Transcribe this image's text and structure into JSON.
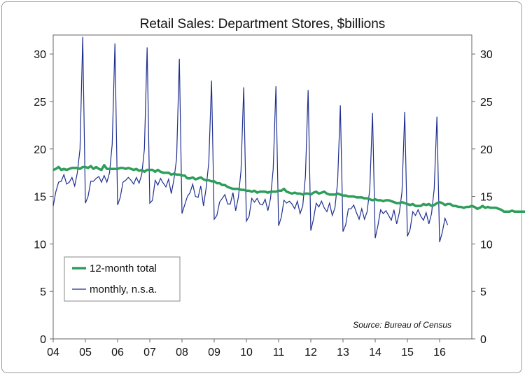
{
  "chart_data": {
    "type": "line",
    "title": "Retail Sales: Department Stores, $billions",
    "source": "Source: Bureau of Census",
    "xlabel": "",
    "ylabel": "",
    "ylim": [
      0,
      32
    ],
    "yticks": [
      "0",
      "5",
      "10",
      "15",
      "20",
      "25",
      "30"
    ],
    "xticks": [
      "04",
      "05",
      "06",
      "07",
      "08",
      "09",
      "10",
      "11",
      "12",
      "13",
      "14",
      "15",
      "16"
    ],
    "xlim": [
      2004,
      2017
    ],
    "grid": false,
    "legend_position": "bottom-left",
    "colors": {
      "total": "#2e9e5b",
      "monthly": "#1f2f8f"
    },
    "series": [
      {
        "name": "12-month total",
        "x_start": "2004-01",
        "values": [
          17.8,
          17.9,
          18.1,
          17.8,
          17.9,
          17.8,
          17.9,
          18.0,
          18.0,
          18.0,
          17.9,
          18.1,
          18.1,
          18.0,
          18.2,
          17.9,
          18.1,
          17.9,
          17.8,
          18.3,
          17.9,
          17.9,
          17.9,
          17.9,
          17.9,
          18.0,
          18.0,
          17.9,
          18.0,
          17.9,
          17.8,
          17.9,
          17.7,
          17.8,
          17.6,
          17.8,
          17.8,
          17.8,
          17.6,
          17.8,
          17.6,
          17.5,
          17.5,
          17.5,
          17.3,
          17.4,
          17.3,
          17.3,
          17.2,
          17.2,
          16.9,
          16.9,
          17.0,
          16.8,
          16.9,
          17.0,
          16.8,
          16.7,
          16.7,
          16.6,
          16.6,
          16.4,
          16.4,
          16.2,
          16.2,
          16.0,
          15.9,
          15.8,
          15.8,
          15.8,
          15.7,
          15.7,
          15.6,
          15.6,
          15.5,
          15.6,
          15.4,
          15.5,
          15.5,
          15.5,
          15.4,
          15.5,
          15.5,
          15.5,
          15.6,
          15.6,
          15.8,
          15.5,
          15.4,
          15.3,
          15.4,
          15.3,
          15.3,
          15.2,
          15.3,
          15.3,
          15.2,
          15.4,
          15.5,
          15.3,
          15.4,
          15.5,
          15.3,
          15.2,
          15.2,
          15.2,
          15.3,
          15.2,
          15.1,
          15.1,
          15.0,
          15.0,
          15.0,
          14.9,
          14.9,
          14.9,
          14.8,
          14.8,
          14.7,
          14.6,
          14.7,
          14.6,
          14.6,
          14.5,
          14.6,
          14.6,
          14.5,
          14.4,
          14.3,
          14.3,
          14.4,
          14.3,
          14.2,
          14.1,
          14.2,
          14.0,
          14.0,
          14.0,
          14.2,
          14.1,
          14.2,
          14.0,
          14.1,
          14.3,
          14.4,
          14.3,
          14.1,
          14.2,
          14.2,
          14.0,
          14.0,
          13.9,
          13.9,
          13.8,
          13.9,
          13.9,
          14.0,
          13.9,
          13.7,
          13.8,
          14.0,
          13.8,
          13.9,
          13.8,
          13.8,
          13.8,
          13.7,
          13.6,
          13.4,
          13.4,
          13.4,
          13.5,
          13.4,
          13.4,
          13.4,
          13.4,
          13.4,
          13.3
        ]
      },
      {
        "name": "monthly, n.s.a.",
        "x_start": "2004-01",
        "values": [
          14.0,
          15.5,
          16.5,
          16.6,
          17.3,
          16.3,
          16.5,
          17.0,
          16.1,
          17.5,
          20.0,
          31.8,
          14.3,
          15.0,
          16.6,
          16.6,
          16.9,
          17.1,
          16.5,
          17.2,
          16.5,
          17.5,
          20.5,
          31.1,
          14.1,
          14.9,
          16.5,
          16.7,
          17.0,
          16.7,
          16.3,
          17.0,
          16.4,
          17.3,
          20.0,
          30.7,
          14.3,
          14.6,
          16.7,
          16.2,
          16.9,
          16.4,
          16.0,
          16.8,
          15.3,
          16.8,
          19.0,
          29.5,
          13.2,
          14.1,
          15.0,
          15.4,
          16.3,
          15.0,
          14.9,
          16.1,
          14.0,
          15.9,
          18.6,
          27.2,
          12.6,
          13.0,
          14.4,
          14.8,
          15.2,
          14.2,
          14.2,
          15.4,
          13.5,
          14.9,
          17.7,
          26.5,
          12.4,
          12.9,
          14.8,
          14.4,
          14.8,
          14.2,
          14.1,
          14.7,
          13.5,
          14.8,
          17.9,
          26.6,
          11.9,
          12.8,
          14.6,
          14.3,
          14.5,
          14.2,
          13.7,
          14.5,
          13.2,
          14.0,
          17.1,
          26.2,
          11.4,
          12.6,
          14.3,
          13.9,
          14.5,
          13.8,
          13.4,
          14.3,
          13.0,
          13.8,
          16.5,
          24.6,
          11.3,
          12.0,
          13.7,
          13.7,
          14.1,
          13.3,
          12.6,
          13.7,
          12.6,
          13.4,
          15.8,
          23.8,
          10.6,
          11.9,
          13.6,
          13.2,
          13.5,
          13.0,
          12.5,
          13.6,
          12.1,
          13.3,
          15.5,
          23.9,
          10.8,
          11.5,
          13.4,
          13.0,
          13.6,
          12.9,
          12.5,
          13.3,
          12.1,
          13.2,
          15.8,
          23.4,
          10.2,
          11.2,
          12.7,
          12.0
        ]
      }
    ]
  }
}
